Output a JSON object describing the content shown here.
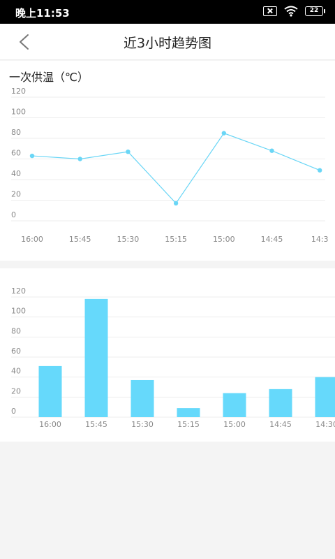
{
  "status_bar": {
    "time": "晚上11:53",
    "battery": "22",
    "icons": [
      "sim-no-signal-icon",
      "wifi-icon",
      "battery-icon"
    ]
  },
  "header": {
    "title": "近3小时趋势图",
    "back_icon": "chevron-left-icon"
  },
  "colors": {
    "line": "#6ad6f6",
    "bar": "#66d9fb",
    "grid": "#eeeeee",
    "tick": "#888888"
  },
  "chart_data": [
    {
      "type": "line",
      "title": "一次供温（℃）",
      "categories": [
        "16:00",
        "15:45",
        "15:30",
        "15:15",
        "15:00",
        "14:45",
        "14:3"
      ],
      "series": [
        {
          "values": [
            63,
            60,
            67,
            17,
            85,
            68,
            49
          ]
        }
      ],
      "ylim": [
        0,
        120
      ],
      "yticks": [
        0,
        20,
        40,
        60,
        80,
        100,
        120
      ],
      "grid": true
    },
    {
      "type": "bar",
      "title": "",
      "categories": [
        "16:00",
        "15:45",
        "15:30",
        "15:15",
        "15:00",
        "14:45",
        "14:30"
      ],
      "series": [
        {
          "values": [
            51,
            118,
            37,
            9,
            24,
            28,
            40
          ]
        }
      ],
      "ylim": [
        0,
        120
      ],
      "yticks": [
        0,
        20,
        40,
        60,
        80,
        100,
        120
      ],
      "grid": true
    }
  ]
}
